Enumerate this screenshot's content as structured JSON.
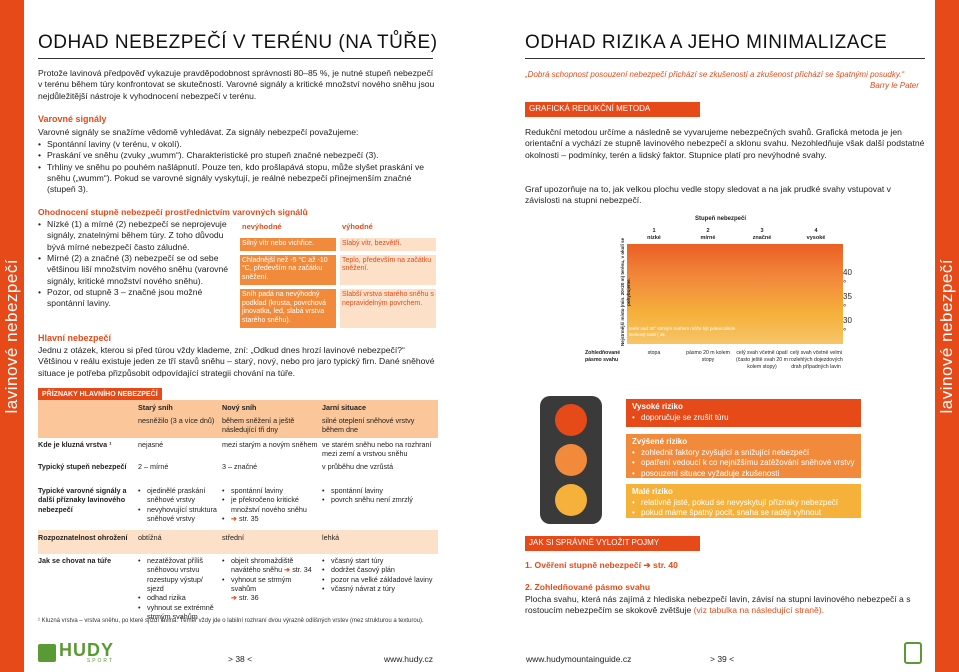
{
  "left": {
    "title": "ODHAD NEBEZPEČÍ V TERÉNU (NA TŮŘE)",
    "intro": "Protože lavinová předpověď vykazuje pravděpodobnost správnosti 80–85 %, je nutné stupeň nebezpečí v terénu během túry konfrontovat se skutečností. Varovné signály a kritické množství nového sněhu jsou nejdůležitější nástroje k vyhodnocení nebezpečí v terénu.",
    "warn_heading": "Varovné signály",
    "warn_text": "Varovné signály se snažíme vědomě vyhledávat. Za signály nebezpečí považujeme:",
    "warn_items": [
      "Spontánní laviny (v terénu, v okolí).",
      "Praskání ve sněhu (zvuky „wumm“). Charakteristické pro stupeň značné nebezpečí (3).",
      "Trhliny ve sněhu po pouhém našlápnutí. Pouze ten, kdo prošlapává stopu, může slyšet praskání ve sněhu („wumm“). Pokud se varovné signály vyskytují, je reálné nebezpečí přinejmenším značné (stupeň 3)."
    ],
    "est_heading": "Ohodnocení stupně nebezpečí prostřednictvím varovných signálů",
    "est_items": [
      "Nízké (1) a mírné (2) nebezpečí se neprojevuje signály, znatelnými během túry. Z toho důvodu bývá mírné nebezpečí často záludné.",
      "Mírné (2) a značné (3) nebezpečí se od sebe většinou liší množstvím nového sněhu (varovné signály, kritické množství nového sněhu).",
      "Pozor, od stupně 3 – značné jsou možné spontánní laviny."
    ],
    "mini_table": {
      "h1": "nevýhodné",
      "h2": "výhodné",
      "rows": [
        [
          "Silný vítr nebo vichřice.",
          "Slabý vítr, bezvětří."
        ],
        [
          "Chladnější než -5 °C až -10 °C, především na začátku sněžení.",
          "Teplo, především na začátku sněžení."
        ],
        [
          "Sníh padá na nevýhodný podklad (krusta, povrchová jinovatka, led, slabá vrstva starého sněhu).",
          "Slabší vrstva starého sněhu s nepravidelným povrchem."
        ]
      ]
    },
    "main_heading": "Hlavní nebezpečí",
    "main_text": "Jednu z otázek, kterou si před túrou vždy klademe, zní: „Odkud dnes hrozí lavinové nebezpečí?“ Většinou v reálu existuje jeden ze tří stavů sněhu – starý, nový, nebo pro jaro typický firn. Dané sněhové situace je potřeba přizpůsobit odpovídající strategii chování na túře.",
    "typ_label": "PŘÍZNAKY HLAVNÍHO NEBEZPEČÍ",
    "typ": {
      "headers": [
        "Starý sníh",
        "Nový sníh",
        "Jarní situace"
      ],
      "row0": [
        "nesněžilo (3 a více dnů)",
        "během sněžení a ještě následující tři dny",
        "silné oteplení sněhové vrstvy během dne"
      ],
      "row1": {
        "label": "Kde je kluzná vrstva ¹",
        "cells": [
          "nejasné",
          "mezi starým a novým sněhem",
          "ve starém sněhu nebo na rozhraní mezi zemí a vrstvou sněhu"
        ]
      },
      "row2": {
        "label": "Typický stupeň nebezpečí",
        "cells": [
          "2 – mírné",
          "3 – značné",
          "v průběhu dne vzrůstá"
        ]
      },
      "row3": {
        "label": "Typické varovné signály a další příznaky lavinového nebezpečí",
        "c1": [
          "ojedinělé praskání sněhové vrstvy",
          "nevyhovující struktura sněhové vrstvy"
        ],
        "c2": [
          "spontánní laviny",
          "je překročeno kritické množství nového sněhu"
        ],
        "c2ref": "str. 35",
        "c3": [
          "spontánní laviny",
          "povrch sněhu není zmrzlý"
        ]
      },
      "row4": {
        "label": "Rozpoznatelnost ohrožení",
        "cells": [
          "obtížná",
          "střední",
          "lehká"
        ]
      },
      "row5": {
        "label": "Jak se chovat na túře",
        "c1": [
          "nezatěžovat příliš sněhovou vrstvu rozestupy výstup/ sjezd",
          "odhad rizika",
          "vyhnout se extrémně strmým svahům"
        ],
        "c2a": "objeít shromaždiště navátého sněhu",
        "c2aref": "str. 34",
        "c2b": "vyhnout se strmým svahům",
        "c2bref": "str. 36",
        "c3": [
          "včasný start túry",
          "dodržet časový plán",
          "pozor na velké základové laviny",
          "včasný návrat z túry"
        ]
      }
    },
    "footnote": "¹ Kluzná vrstva – vrstva sněhu, po které sjíždí lavina. Téměř vždy jde o labilní rozhraní dvou výrazně odlišných vrstev (mez strukturou a texturou).",
    "logo": "HUDY",
    "logo_sub": "SPORT",
    "page": "> 38 <",
    "url": "www.hudy.cz"
  },
  "right": {
    "title": "ODHAD RIZIKA A JEHO MINIMALIZACE",
    "quote": "„Dobrá schopnost posouzení nebezpečí přichází se zkušeností a zkušenost přichází se špatnými posudky.“",
    "quote_author": "Barry le Pater",
    "method_label": "GRAFICKÁ REDUKČNÍ METODA",
    "method_text": "Redukční metodou určíme a následně se vyvarujeme nebezpečných svahů. Grafická metoda je jen orientační a vychází ze stupně lavinového nebezpečí a sklonu svahu. Nezohledňuje však další podstatné okolnosti – podmínky, terén a lidský faktor. Stupnice platí pro nevýhodné svahy.",
    "graph_text": "Graf upozorňuje na to, jak velkou plochu vedle stopy sledovat a na jak prudké svahy vstupovat v závislosti na stupni nebezpečí.",
    "chart": {
      "top_label": "Stupeň nebezpečí",
      "levels": [
        {
          "num": "1",
          "name": "nízké"
        },
        {
          "num": "2",
          "name": "mírné"
        },
        {
          "num": "3",
          "name": "značné"
        },
        {
          "num": "4",
          "name": "vysoké"
        }
      ],
      "yaxis": "Nejstrmější místo (min. 20×20 m) terénu, v okolí se pohybujeme.",
      "angles": [
        "40 °",
        "35 °",
        "30 °"
      ],
      "inner_note": "terén nad 30° strmým svahem může být potenciálním lavinový svah ( ak.",
      "row_label": "Zohledňované pásmo svahu",
      "bottom": [
        "stopa",
        "pásmo 20 m kolem stopy",
        "celý svah včetně úpatí (často ještě svah 20 m kolem stopy)",
        "celý svah včetně velmi rozlehlých dojezdových drah případných lavin"
      ]
    },
    "risks": [
      {
        "title": "Vysoké riziko",
        "items": [
          "doporučuje se zrušit túru"
        ]
      },
      {
        "title": "Zvýšené riziko",
        "items": [
          "zohlednit faktory zvyšující a snižující nebezpečí",
          "opatření vedoucí k co nejnižšímu zatěžování sněhové vrstvy",
          "posouzení situace vyžaduje zkušenosti"
        ]
      },
      {
        "title": "Malé riziko",
        "items": [
          "relativně jisté, pokud se nevyskytují příznaky nebezpečí",
          "pokud máme špatný pocit, snaha se raději vyhnout"
        ]
      }
    ],
    "slopes_label": "JAK SI SPRÁVNĚ VYLOŽIT POJMY",
    "s1": "1. Ověření stupně nebezpečí",
    "s1ref": "str. 40",
    "s2": "2. Zohledňované pásmo svahu",
    "s2text": "Plocha svahu, která nás zajímá z hlediska nebezpečí lavin, závisí na stupni lavinového nebezpečí a s rostoucím nebezpečím se skokově zvětšuje",
    "s2tail": "(viz tabulka na následující straně).",
    "url": "www.hudymountainguide.cz",
    "page": "> 39 <"
  },
  "side_label": "lavinové nebezpečí",
  "colors": {
    "accent": "#e64a19",
    "orange": "#f28a3c",
    "yellow": "#f5b13a"
  }
}
